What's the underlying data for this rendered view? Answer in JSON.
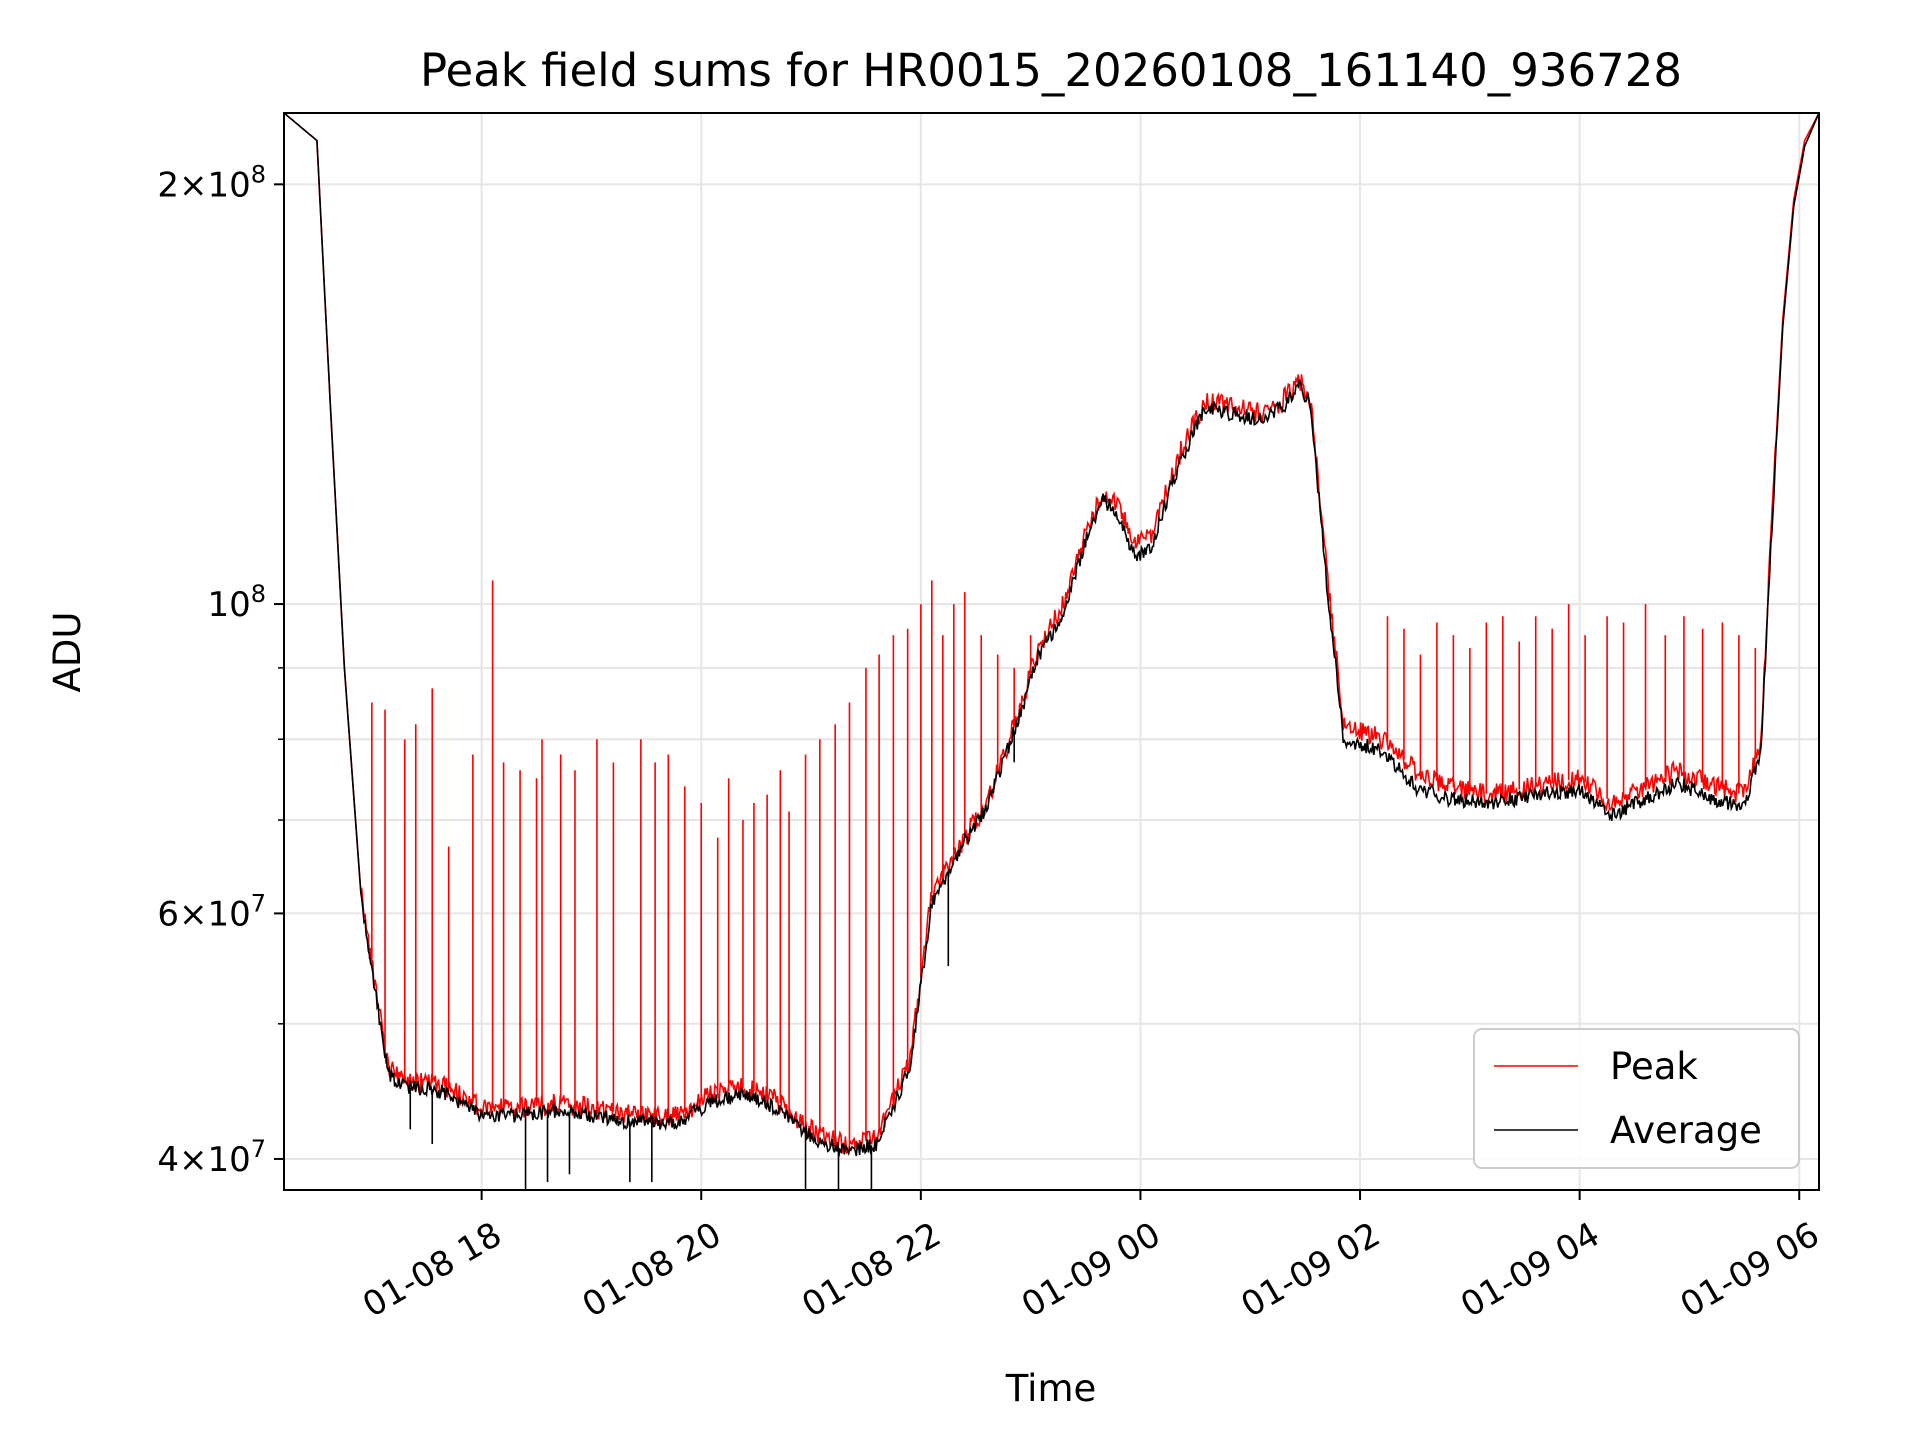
{
  "chart_data": {
    "type": "line",
    "title": "Peak field sums for HR0015_20260108_161140_936728",
    "xlabel": "Time",
    "ylabel": "ADU",
    "yscale": "log",
    "ylim": [
      38000000,
      225000000
    ],
    "xlim_hours": [
      16.2,
      30.18
    ],
    "grid": true,
    "legend_position": "lower-right",
    "x_ticks": [
      {
        "hour": 18,
        "label": "01-08 18"
      },
      {
        "hour": 20,
        "label": "01-08 20"
      },
      {
        "hour": 22,
        "label": "01-08 22"
      },
      {
        "hour": 24,
        "label": "01-09 00"
      },
      {
        "hour": 26,
        "label": "01-09 02"
      },
      {
        "hour": 28,
        "label": "01-09 04"
      },
      {
        "hour": 30,
        "label": "01-09 06"
      }
    ],
    "y_major_ticks": [
      {
        "value": 200000000,
        "mantissa": "2",
        "exponent": "8"
      },
      {
        "value": 100000000,
        "mantissa": "",
        "exponent": "8"
      },
      {
        "value": 60000000,
        "mantissa": "6",
        "exponent": "7"
      },
      {
        "value": 40000000,
        "mantissa": "4",
        "exponent": "7"
      }
    ],
    "y_minor_ticks": [
      90000000,
      80000000,
      70000000,
      50000000
    ],
    "series": [
      {
        "name": "Peak",
        "color": "#ff0000",
        "base_hours": [
          16.2,
          16.5,
          16.6,
          16.75,
          16.9,
          17.0,
          17.15,
          17.3,
          17.5,
          17.7,
          18.0,
          18.3,
          18.7,
          19.0,
          19.4,
          19.8,
          20.1,
          20.4,
          20.7,
          21.0,
          21.3,
          21.6,
          21.9,
          22.1,
          22.35,
          22.6,
          22.9,
          23.05,
          23.3,
          23.5,
          23.65,
          23.8,
          23.95,
          24.1,
          24.35,
          24.6,
          24.9,
          25.1,
          25.3,
          25.45,
          25.55,
          25.7,
          25.85,
          26.2,
          26.5,
          26.8,
          27.2,
          27.6,
          28.0,
          28.3,
          28.6,
          28.9,
          29.2,
          29.5,
          29.65,
          29.75,
          29.85,
          29.95,
          30.05,
          30.18
        ],
        "base_values": [
          225000000,
          215000000,
          150000000,
          90000000,
          62000000,
          55000000,
          46500000,
          45500000,
          45500000,
          45000000,
          43500000,
          43500000,
          43800000,
          43500000,
          43000000,
          43000000,
          44500000,
          45000000,
          44000000,
          42000000,
          41000000,
          41500000,
          47000000,
          62000000,
          67000000,
          72000000,
          84000000,
          92000000,
          100000000,
          112000000,
          120000000,
          118000000,
          110000000,
          112000000,
          128000000,
          140000000,
          138000000,
          137000000,
          140000000,
          145000000,
          140000000,
          105000000,
          82000000,
          80000000,
          76000000,
          74000000,
          73000000,
          74000000,
          75000000,
          72000000,
          74000000,
          76000000,
          74000000,
          73000000,
          80000000,
          115000000,
          160000000,
          195000000,
          215000000,
          225000000
        ],
        "spike_hours": [
          17.0,
          17.12,
          17.3,
          17.4,
          17.55,
          17.7,
          17.92,
          18.1,
          18.2,
          18.35,
          18.5,
          18.55,
          18.72,
          18.85,
          19.05,
          19.2,
          19.45,
          19.58,
          19.7,
          19.85,
          20.0,
          20.15,
          20.25,
          20.38,
          20.48,
          20.6,
          20.72,
          20.8,
          20.95,
          21.08,
          21.22,
          21.35,
          21.5,
          21.62,
          21.75,
          21.88,
          22.0,
          22.1,
          22.2,
          22.3,
          22.4,
          22.55,
          22.7,
          22.85,
          23.0,
          26.25,
          26.4,
          26.55,
          26.7,
          26.85,
          27.0,
          27.15,
          27.3,
          27.45,
          27.6,
          27.75,
          27.9,
          28.05,
          28.25,
          28.4,
          28.6,
          28.78,
          28.95,
          29.12,
          29.3,
          29.45,
          29.6
        ],
        "spike_values": [
          85000000,
          84000000,
          80000000,
          82000000,
          87000000,
          67000000,
          78000000,
          104000000,
          77000000,
          76000000,
          75000000,
          80000000,
          78000000,
          76000000,
          80000000,
          77000000,
          80000000,
          77000000,
          78000000,
          74000000,
          72000000,
          68000000,
          75000000,
          70000000,
          72000000,
          73000000,
          76000000,
          71000000,
          78000000,
          80000000,
          82000000,
          85000000,
          90000000,
          92000000,
          95000000,
          96000000,
          100000000,
          104000000,
          95000000,
          100000000,
          102000000,
          95000000,
          92000000,
          90000000,
          95000000,
          98000000,
          96000000,
          92000000,
          97000000,
          95000000,
          93000000,
          97000000,
          98000000,
          94000000,
          98000000,
          96000000,
          100000000,
          95000000,
          98000000,
          97000000,
          100000000,
          95000000,
          98000000,
          96000000,
          97000000,
          95000000,
          93000000
        ]
      },
      {
        "name": "Average",
        "color": "#000000",
        "base_hours": [
          16.2,
          16.5,
          16.6,
          16.75,
          16.9,
          17.0,
          17.15,
          17.3,
          17.5,
          17.7,
          18.0,
          18.3,
          18.7,
          19.0,
          19.4,
          19.8,
          20.1,
          20.4,
          20.7,
          21.0,
          21.3,
          21.6,
          21.9,
          22.1,
          22.35,
          22.6,
          22.9,
          23.05,
          23.3,
          23.5,
          23.65,
          23.8,
          23.95,
          24.1,
          24.35,
          24.6,
          24.9,
          25.1,
          25.3,
          25.45,
          25.55,
          25.7,
          25.85,
          26.2,
          26.5,
          26.8,
          27.2,
          27.6,
          28.0,
          28.3,
          28.6,
          28.9,
          29.2,
          29.5,
          29.65,
          29.75,
          29.85,
          29.95,
          30.05,
          30.18
        ],
        "base_values": [
          225000000,
          215000000,
          150000000,
          90000000,
          62000000,
          54500000,
          46000000,
          45000000,
          45000000,
          44500000,
          43000000,
          43000000,
          43300000,
          43000000,
          42500000,
          42500000,
          44000000,
          44500000,
          43500000,
          41500000,
          40500000,
          41000000,
          46500000,
          61000000,
          66500000,
          71500000,
          83000000,
          91000000,
          98500000,
          111000000,
          119000000,
          116000000,
          108000000,
          110000000,
          126000000,
          138500000,
          136500000,
          135500000,
          138500000,
          143500000,
          138500000,
          103000000,
          80000000,
          78500000,
          74000000,
          72500000,
          72000000,
          73000000,
          73500000,
          70500000,
          72500000,
          74500000,
          72500000,
          71500000,
          78500000,
          113000000,
          158000000,
          193000000,
          213000000,
          225000000
        ],
        "dip_hours": [
          17.35,
          17.55,
          18.4,
          18.6,
          18.8,
          19.35,
          19.55,
          20.95,
          21.25,
          21.55,
          22.25,
          22.85
        ],
        "dip_values": [
          42000000,
          41000000,
          37500000,
          38500000,
          39000000,
          38500000,
          38500000,
          38000000,
          37500000,
          38000000,
          55000000,
          77000000
        ]
      }
    ]
  }
}
